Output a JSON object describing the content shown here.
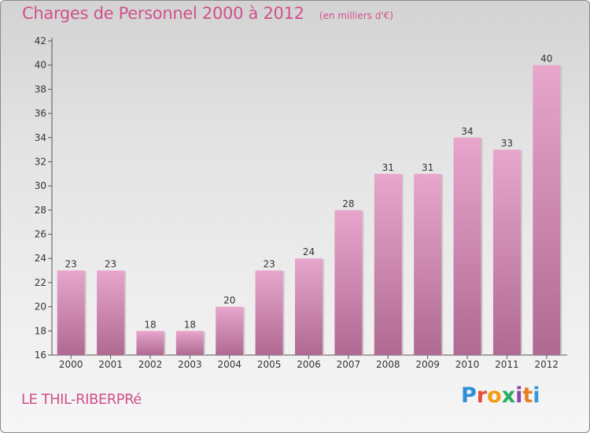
{
  "chart_data": {
    "type": "bar",
    "title": "Charges de Personnel 2000 à 2012",
    "subtitle": "(en milliers d'€)",
    "categories": [
      "2000",
      "2001",
      "2002",
      "2003",
      "2004",
      "2005",
      "2006",
      "2007",
      "2008",
      "2009",
      "2010",
      "2011",
      "2012"
    ],
    "values": [
      23,
      23,
      18,
      18,
      20,
      23,
      24,
      28,
      31,
      31,
      34,
      33,
      40
    ],
    "ylim": [
      16,
      42
    ],
    "yticks": [
      16,
      18,
      20,
      22,
      24,
      26,
      28,
      30,
      32,
      34,
      36,
      38,
      40,
      42
    ],
    "grid": false,
    "bar_color_top": "#e8a6cc",
    "bar_color_bottom": "#b06a92"
  },
  "footer": {
    "city": "LE THIL-RIBERPRé",
    "logo_letters": [
      "P",
      "r",
      "o",
      "x",
      "i",
      "t",
      "i"
    ]
  }
}
